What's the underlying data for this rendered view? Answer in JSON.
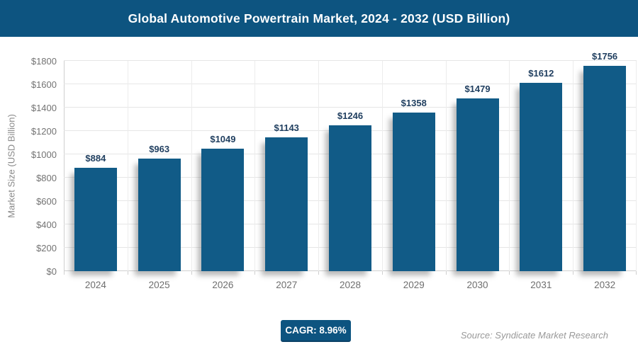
{
  "header": {
    "title": "Global Automotive Powertrain Market, 2024 - 2032 (USD Billion)"
  },
  "chart_data": {
    "type": "bar",
    "title": "Global Automotive Powertrain Market, 2024 - 2032 (USD Billion)",
    "categories": [
      "2024",
      "2025",
      "2026",
      "2027",
      "2028",
      "2029",
      "2030",
      "2031",
      "2032"
    ],
    "values": [
      884,
      963,
      1049,
      1143,
      1246,
      1358,
      1479,
      1612,
      1756
    ],
    "data_label_prefix": "$",
    "xlabel": "",
    "ylabel": "Market Size (USD Billion)",
    "ylim": [
      0,
      1800
    ],
    "ytick_step": 200,
    "ytick_prefix": "$",
    "grid": true,
    "legend": "none"
  },
  "footer": {
    "cagr_label": "CAGR: 8.96%",
    "source": "Source: Syndicate Market Research"
  },
  "colors": {
    "banner_bg": "#0d5480",
    "bar": "#115b87",
    "data_label": "#1f3e5f",
    "badge_bg": "#0d5480",
    "badge_border": "#0a4066"
  }
}
